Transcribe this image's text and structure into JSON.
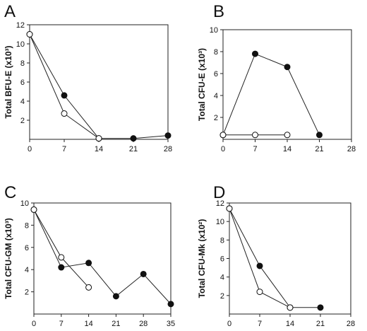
{
  "chart_data": [
    {
      "type": "line",
      "panel": "A",
      "ylabel": "Total BFU-E (x10³)",
      "xlim": [
        0,
        28
      ],
      "ylim": [
        0,
        12
      ],
      "x_ticks": [
        0,
        7,
        14,
        21,
        28
      ],
      "y_ticks": [
        2,
        4,
        6,
        8,
        10,
        12
      ],
      "series": [
        {
          "marker": "filled",
          "x": [
            0,
            7,
            14,
            21,
            28
          ],
          "y": [
            11,
            4.6,
            0.1,
            0.1,
            0.4
          ]
        },
        {
          "marker": "open",
          "x": [
            0,
            7,
            14
          ],
          "y": [
            11,
            2.7,
            0.1
          ]
        }
      ]
    },
    {
      "type": "line",
      "panel": "B",
      "ylabel": "Total CFU-E (x10³)",
      "xlim": [
        0,
        28
      ],
      "ylim": [
        0,
        10
      ],
      "x_ticks": [
        0,
        7,
        14,
        21,
        28
      ],
      "y_ticks": [
        2,
        4,
        6,
        8,
        10
      ],
      "series": [
        {
          "marker": "filled",
          "x": [
            0,
            7,
            14,
            21
          ],
          "y": [
            0.4,
            7.8,
            6.6,
            0.4
          ]
        },
        {
          "marker": "open",
          "x": [
            0,
            7,
            14
          ],
          "y": [
            0.4,
            0.4,
            0.4
          ]
        }
      ]
    },
    {
      "type": "line",
      "panel": "C",
      "ylabel": "Total CFU-GM (x10³)",
      "xlim": [
        0,
        35
      ],
      "ylim": [
        0,
        10
      ],
      "x_ticks": [
        0,
        7,
        14,
        21,
        28,
        35
      ],
      "y_ticks": [
        2,
        4,
        6,
        8,
        10
      ],
      "series": [
        {
          "marker": "filled",
          "x": [
            0,
            7,
            14,
            21,
            28,
            35
          ],
          "y": [
            9.4,
            4.2,
            4.6,
            1.6,
            3.6,
            0.9
          ]
        },
        {
          "marker": "open",
          "x": [
            0,
            7,
            14
          ],
          "y": [
            9.4,
            5.1,
            2.4
          ]
        }
      ]
    },
    {
      "type": "line",
      "panel": "D",
      "ylabel": "Total CFU-Mk (x10²)",
      "xlim": [
        0,
        28
      ],
      "ylim": [
        0,
        12
      ],
      "x_ticks": [
        0,
        7,
        14,
        21,
        28
      ],
      "y_ticks": [
        2,
        4,
        6,
        8,
        10,
        12
      ],
      "series": [
        {
          "marker": "filled",
          "x": [
            0,
            7,
            14,
            21
          ],
          "y": [
            11.4,
            5.2,
            0.7,
            0.7
          ]
        },
        {
          "marker": "open",
          "x": [
            0,
            7,
            14
          ],
          "y": [
            11.4,
            2.4,
            0.7
          ]
        }
      ]
    }
  ]
}
